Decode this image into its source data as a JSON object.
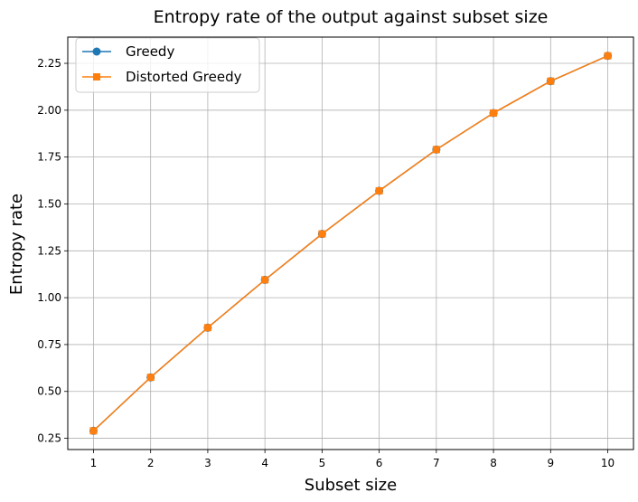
{
  "chart_data": {
    "type": "line",
    "title": "Entropy rate of the output against subset size",
    "xlabel": "Subset size",
    "ylabel": "Entropy rate",
    "x": [
      1,
      2,
      3,
      4,
      5,
      6,
      7,
      8,
      9,
      10
    ],
    "xlim": [
      0.55,
      10.45
    ],
    "ylim": [
      0.19,
      2.39
    ],
    "xticks": [
      "1",
      "2",
      "3",
      "4",
      "5",
      "6",
      "7",
      "8",
      "9",
      "10"
    ],
    "yticks": [
      "0.25",
      "0.50",
      "0.75",
      "1.00",
      "1.25",
      "1.50",
      "1.75",
      "2.00",
      "2.25"
    ],
    "grid": true,
    "legend_position": "top-left",
    "series": [
      {
        "name": "Greedy",
        "color": "#1f77b4",
        "marker": "circle",
        "values": [
          0.29,
          0.575,
          0.84,
          1.095,
          1.34,
          1.57,
          1.79,
          1.985,
          2.155,
          2.29
        ]
      },
      {
        "name": "Distorted Greedy",
        "color": "#ff7f0e",
        "marker": "square",
        "values": [
          0.29,
          0.575,
          0.84,
          1.095,
          1.34,
          1.57,
          1.79,
          1.985,
          2.155,
          2.29
        ]
      }
    ]
  }
}
